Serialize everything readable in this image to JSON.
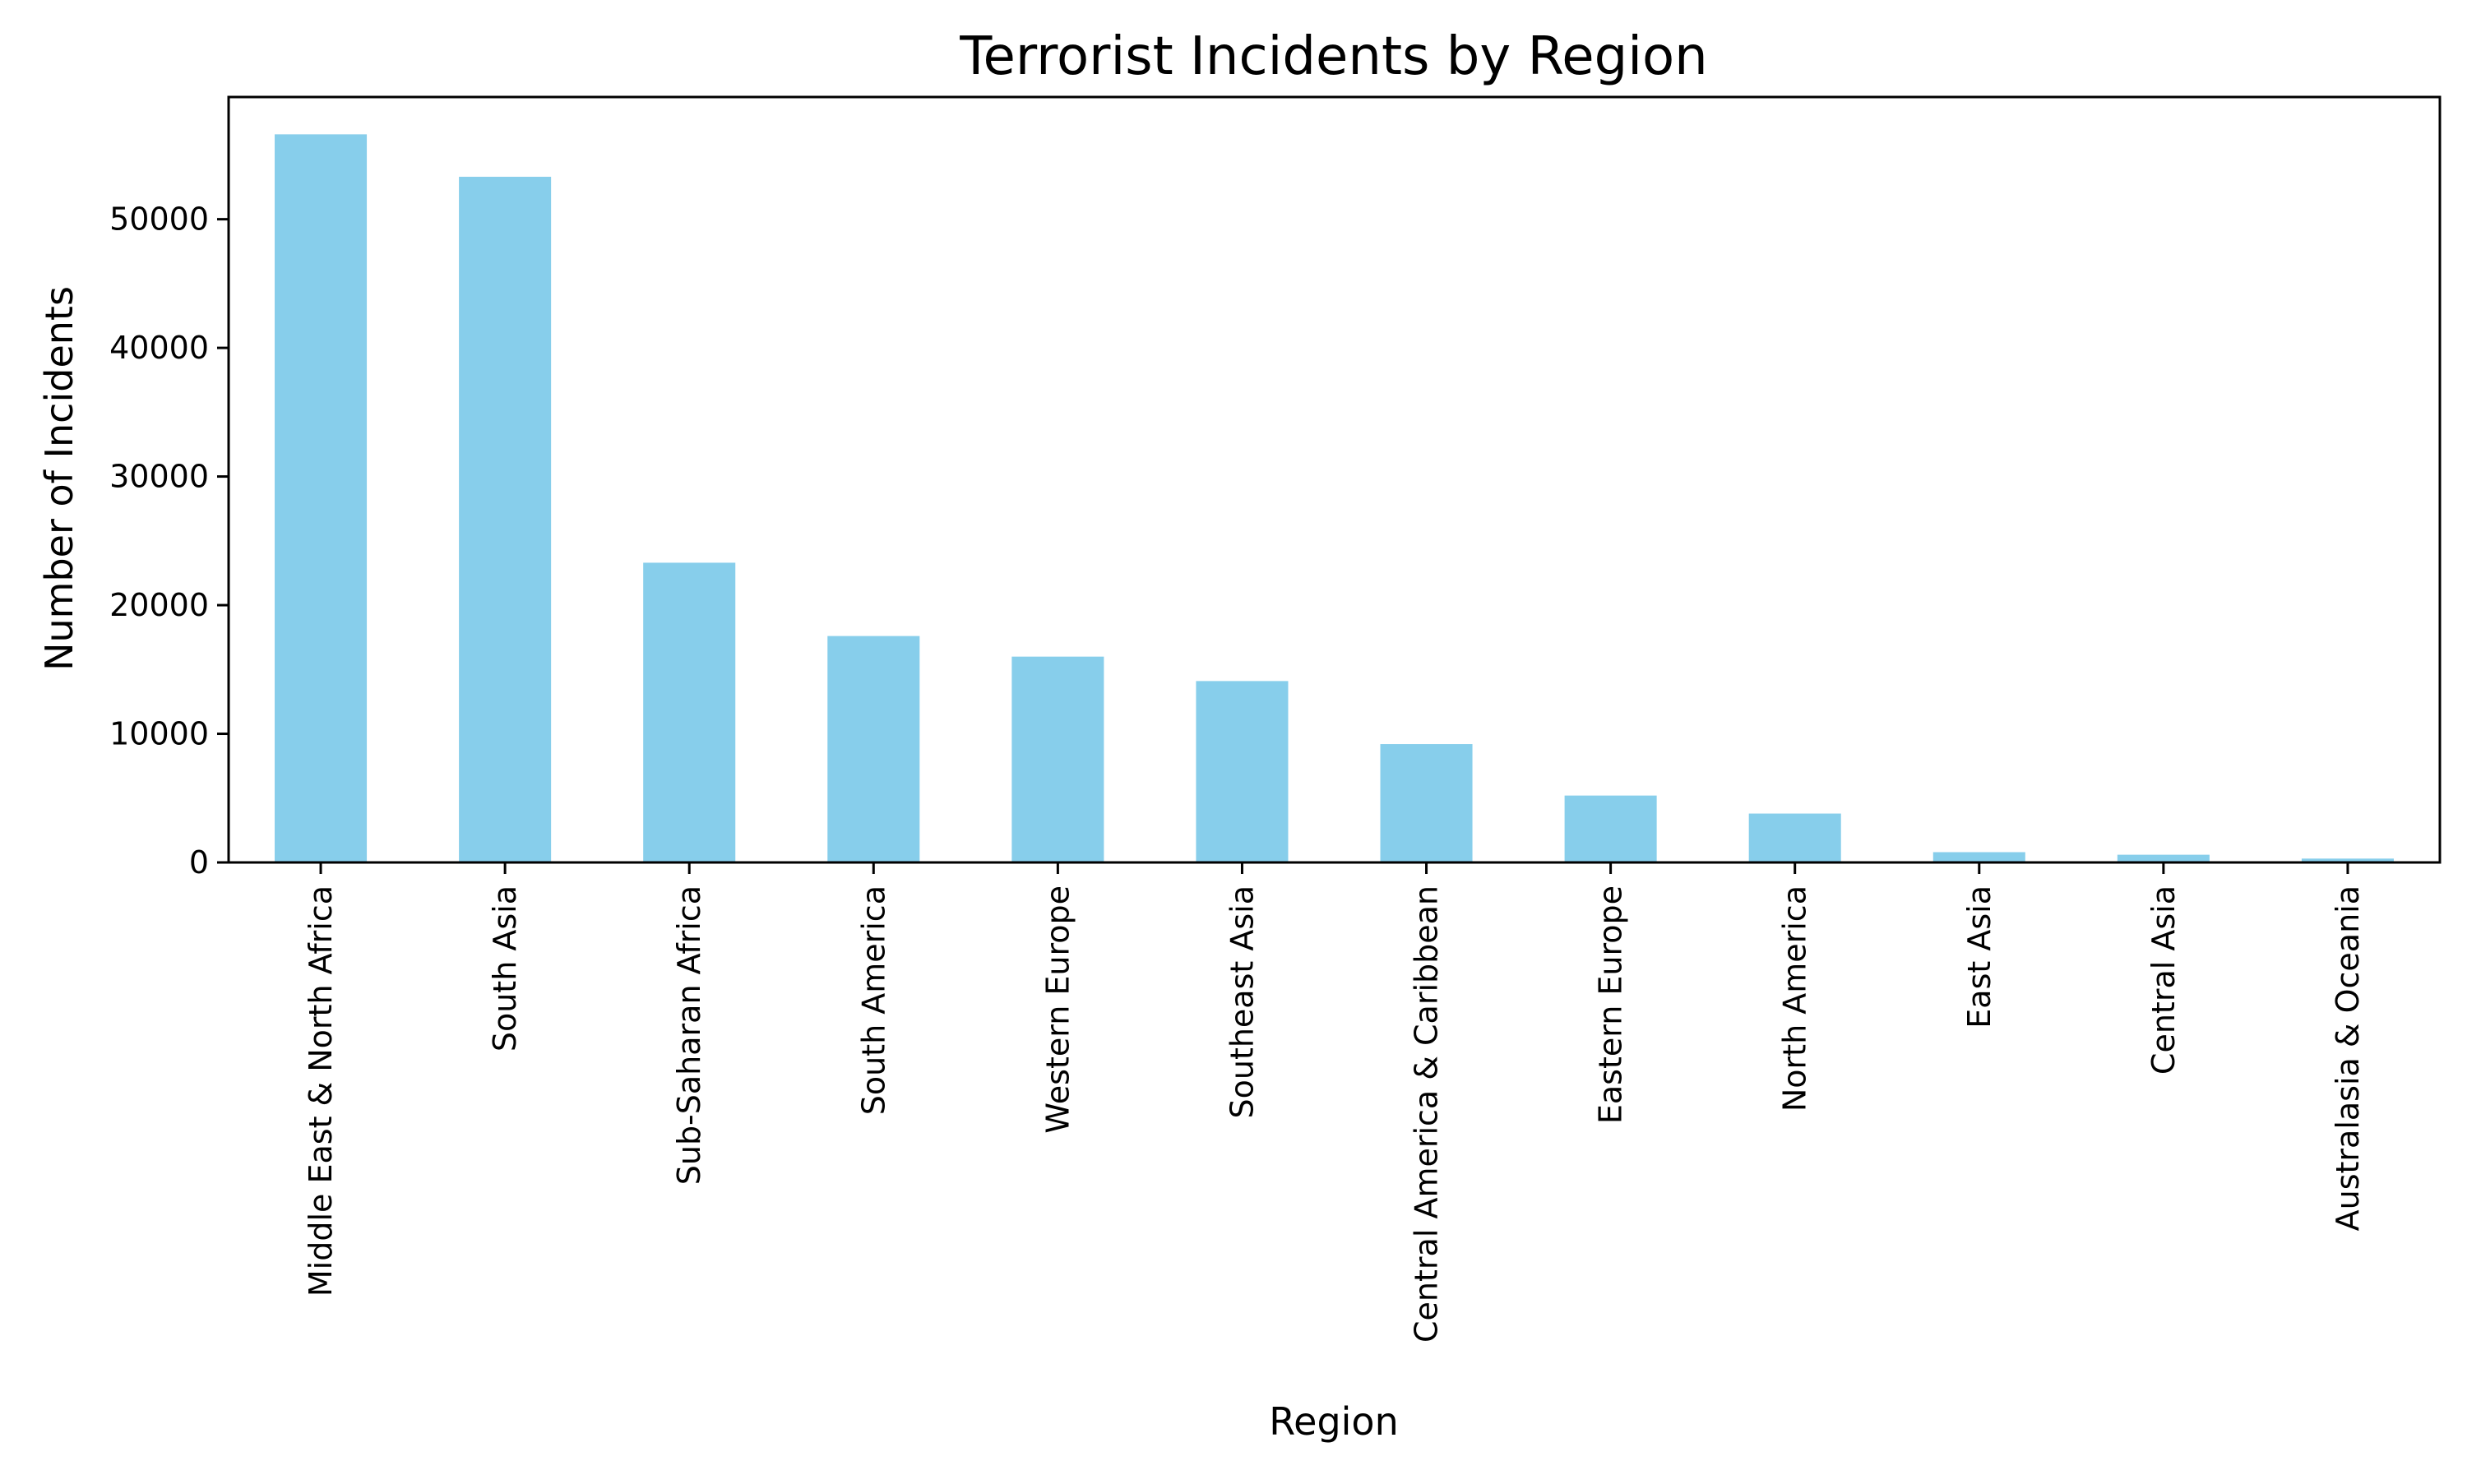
{
  "chart_data": {
    "type": "bar",
    "title": "Terrorist Incidents by Region",
    "xlabel": "Region",
    "ylabel": "Number of Incidents",
    "categories": [
      "Middle East & North Africa",
      "South Asia",
      "Sub-Saharan Africa",
      "South America",
      "Western Europe",
      "Southeast Asia",
      "Central America & Caribbean",
      "Eastern Europe",
      "North America",
      "East Asia",
      "Central Asia",
      "Australasia & Oceania"
    ],
    "values": [
      56600,
      53300,
      23300,
      17600,
      16000,
      14100,
      9200,
      5200,
      3800,
      800,
      600,
      300
    ],
    "ylim": [
      0,
      59500
    ],
    "yticks": [
      0,
      10000,
      20000,
      30000,
      40000,
      50000
    ],
    "grid": false,
    "bar_color": "#87CEEB",
    "axis_color": "#000000"
  }
}
